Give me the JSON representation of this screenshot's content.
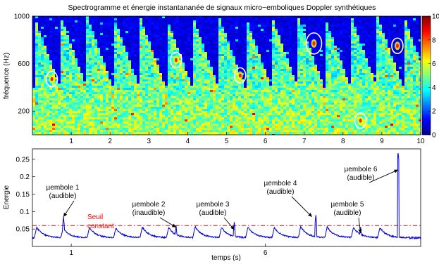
{
  "chart_data": [
    {
      "type": "heatmap",
      "title": "Spectrogramme et énergie instantananée de signaux micro−emboliques Doppler synthétiques",
      "xlabel": "",
      "ylabel": "fréquence (Hz)",
      "xlim": [
        0,
        10
      ],
      "ylim": [
        0,
        1000
      ],
      "xticks": [
        1,
        2,
        3,
        4,
        5,
        6,
        7,
        8,
        9,
        10
      ],
      "yticks": [
        200,
        600,
        1000
      ],
      "colorbar": {
        "min": 0,
        "max": 10,
        "ticks": [
          0,
          2,
          4,
          6,
          8,
          10
        ]
      },
      "colormap": "jet",
      "sweeps_start_s": [
        0.05,
        0.73,
        1.41,
        2.09,
        2.77,
        3.45,
        4.13,
        4.81,
        5.49,
        6.17,
        6.85,
        7.53,
        8.21,
        8.89
      ],
      "emboli": [
        {
          "t": 0.5,
          "f": 470
        },
        {
          "t": 3.7,
          "f": 630
        },
        {
          "t": 5.35,
          "f": 500
        },
        {
          "t": 7.25,
          "f": 770
        },
        {
          "t": 8.45,
          "f": 120
        },
        {
          "t": 9.4,
          "f": 750
        }
      ]
    },
    {
      "type": "line",
      "xlabel": "temps (s)",
      "ylabel": "Energie",
      "xlim": [
        0,
        10
      ],
      "ylim": [
        0,
        0.28
      ],
      "xtick_labels": [
        {
          "x": 1,
          "label": "1"
        },
        {
          "x": 6,
          "label": "6"
        }
      ],
      "yticks": [
        0.05,
        0.1,
        0.15,
        0.2,
        0.25
      ],
      "threshold": {
        "value": 0.06,
        "label": [
          "Seuil",
          "constant"
        ],
        "color": "#ff0000"
      },
      "series_color": "#0000cc",
      "baseline": 0.025,
      "sweep_peaks": [
        0.055,
        0.052,
        0.055,
        0.053,
        0.056,
        0.054,
        0.057,
        0.055,
        0.056,
        0.054,
        0.058,
        0.056,
        0.055,
        0.054
      ],
      "emboli_peaks": [
        {
          "t": 0.8,
          "energy": 0.085
        },
        {
          "t": 3.7,
          "energy": 0.06
        },
        {
          "t": 5.2,
          "energy": 0.07
        },
        {
          "t": 7.3,
          "energy": 0.09
        },
        {
          "t": 8.45,
          "energy": 0.06
        },
        {
          "t": 9.42,
          "energy": 0.27
        }
      ],
      "annotations": [
        {
          "lines": [
            "µembole 1",
            "(audible)"
          ],
          "target_t": 0.8,
          "target_y": 0.085
        },
        {
          "lines": [
            "µembole 2",
            "(inaudible)"
          ],
          "target_t": 3.7,
          "target_y": 0.055
        },
        {
          "lines": [
            "µembole 3",
            "(audible)"
          ],
          "target_t": 5.2,
          "target_y": 0.048
        },
        {
          "lines": [
            "µembole 4",
            "(audible)"
          ],
          "target_t": 7.2,
          "target_y": 0.085
        },
        {
          "lines": [
            "µembole 5",
            "(audible)"
          ],
          "target_t": 8.45,
          "target_y": 0.038
        },
        {
          "lines": [
            "µembole 6",
            "(audible)"
          ],
          "target_t": 9.42,
          "target_y": 0.22
        }
      ]
    }
  ]
}
